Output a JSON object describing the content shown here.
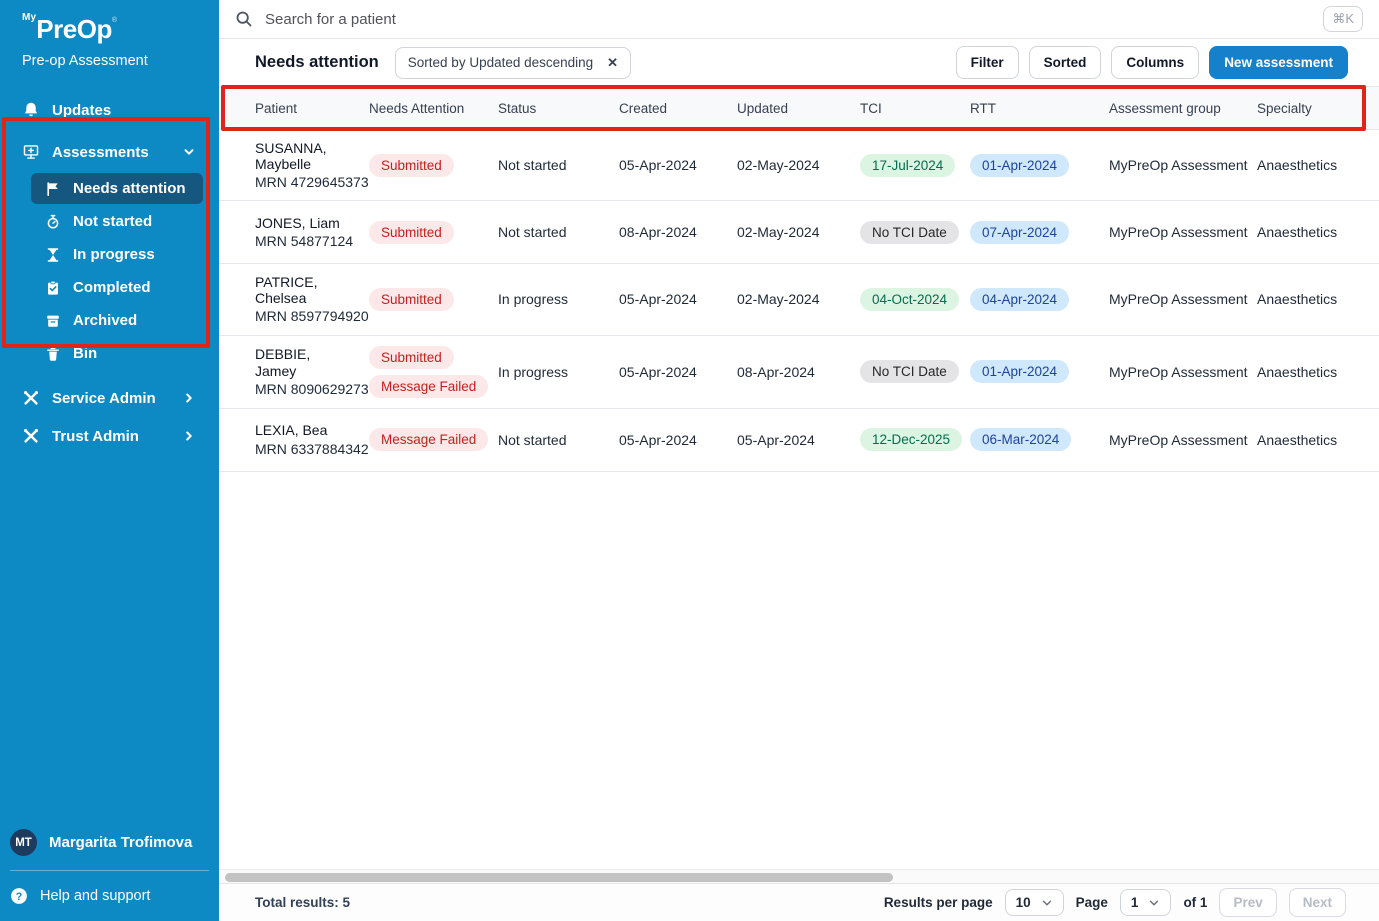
{
  "colors": {
    "sidebar_blue": "#0d89c4",
    "sidebar_selected": "#15577e",
    "primary_button_blue": "#1780ca",
    "annotation_red": "#e02418",
    "pill_red_bg": "#fce8e8",
    "pill_red_text": "#c81e1e",
    "pill_green_bg": "#dcf5e2",
    "pill_green_text": "#046c4e",
    "pill_blue_bg": "#cfe8fb",
    "pill_blue_text": "#1e429f",
    "pill_gray_bg": "#e4e4e7",
    "pill_gray_text": "#27272a"
  },
  "sidebar": {
    "logo": {
      "prefix": "My",
      "name": "PreOp",
      "mark": "®"
    },
    "subtitle": "Pre-op Assessment",
    "updates_label": "Updates",
    "assessments": {
      "label": "Assessments",
      "items": [
        {
          "label": "Needs attention",
          "icon": "flag-icon",
          "selected": true
        },
        {
          "label": "Not started",
          "icon": "stopwatch-icon",
          "selected": false
        },
        {
          "label": "In progress",
          "icon": "hourglass-icon",
          "selected": false
        },
        {
          "label": "Completed",
          "icon": "clipboard-check-icon",
          "selected": false
        },
        {
          "label": "Archived",
          "icon": "archive-icon",
          "selected": false
        },
        {
          "label": "Bin",
          "icon": "trash-icon",
          "selected": false
        }
      ]
    },
    "service_admin_label": "Service Admin",
    "trust_admin_label": "Trust Admin",
    "user": {
      "initials": "MT",
      "name": "Margarita Trofimova"
    },
    "help_label": "Help and support"
  },
  "topbar": {
    "search_placeholder": "Search for a patient",
    "shortcut": "⌘K"
  },
  "toolbar": {
    "title": "Needs attention",
    "sort_chip": "Sorted by Updated descending",
    "chip_close": "✕",
    "filter_label": "Filter",
    "sorted_label": "Sorted",
    "columns_label": "Columns",
    "new_assessment_label": "New assessment"
  },
  "table": {
    "columns": [
      "Patient",
      "Needs Attention",
      "Status",
      "Created",
      "Updated",
      "TCI",
      "RTT",
      "Assessment group",
      "Specialty"
    ],
    "rows": [
      {
        "patient": "SUSANNA, Maybelle",
        "mrn": "MRN 4729645373",
        "needs_attention": [
          {
            "label": "Submitted",
            "type": "red"
          }
        ],
        "status": "Not started",
        "created": "05-Apr-2024",
        "updated": "02-May-2024",
        "tci": {
          "label": "17-Jul-2024",
          "type": "green"
        },
        "rtt": {
          "label": "01-Apr-2024",
          "type": "blue"
        },
        "assessment_group": "MyPreOp Assessment",
        "specialty": "Anaesthetics"
      },
      {
        "patient": "JONES, Liam",
        "mrn": "MRN 54877124",
        "needs_attention": [
          {
            "label": "Submitted",
            "type": "red"
          }
        ],
        "status": "Not started",
        "created": "08-Apr-2024",
        "updated": "02-May-2024",
        "tci": {
          "label": "No TCI Date",
          "type": "gray"
        },
        "rtt": {
          "label": "07-Apr-2024",
          "type": "blue"
        },
        "assessment_group": "MyPreOp Assessment",
        "specialty": "Anaesthetics"
      },
      {
        "patient": "PATRICE, Chelsea",
        "mrn": "MRN 8597794920",
        "needs_attention": [
          {
            "label": "Submitted",
            "type": "red"
          }
        ],
        "status": "In progress",
        "created": "05-Apr-2024",
        "updated": "02-May-2024",
        "tci": {
          "label": "04-Oct-2024",
          "type": "green"
        },
        "rtt": {
          "label": "04-Apr-2024",
          "type": "blue"
        },
        "assessment_group": "MyPreOp Assessment",
        "specialty": "Anaesthetics"
      },
      {
        "patient": "DEBBIE, Jamey",
        "mrn": "MRN 8090629273",
        "needs_attention": [
          {
            "label": "Submitted",
            "type": "red"
          },
          {
            "label": "Message Failed",
            "type": "red"
          }
        ],
        "status": "In progress",
        "created": "05-Apr-2024",
        "updated": "08-Apr-2024",
        "tci": {
          "label": "No TCI Date",
          "type": "gray"
        },
        "rtt": {
          "label": "01-Apr-2024",
          "type": "blue"
        },
        "assessment_group": "MyPreOp Assessment",
        "specialty": "Anaesthetics"
      },
      {
        "patient": "LEXIA, Bea",
        "mrn": "MRN 6337884342",
        "needs_attention": [
          {
            "label": "Message Failed",
            "type": "red"
          }
        ],
        "status": "Not started",
        "created": "05-Apr-2024",
        "updated": "05-Apr-2024",
        "tci": {
          "label": "12-Dec-2025",
          "type": "green"
        },
        "rtt": {
          "label": "06-Mar-2024",
          "type": "blue"
        },
        "assessment_group": "MyPreOp Assessment",
        "specialty": "Anaesthetics"
      }
    ]
  },
  "footer": {
    "total_label": "Total results: 5",
    "results_per_page_label": "Results per page",
    "per_page_value": "10",
    "page_label": "Page",
    "page_value": "1",
    "of_label": "of 1",
    "prev_label": "Prev",
    "next_label": "Next"
  }
}
